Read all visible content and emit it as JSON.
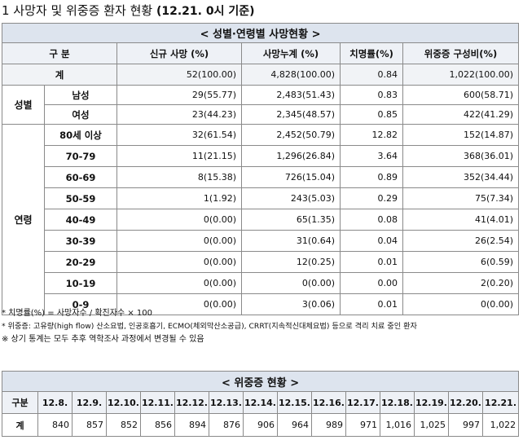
{
  "page": {
    "title": "1  사망자 및 위중증 환자 현황",
    "date_tag": "(12.21. 0시 기준)"
  },
  "deaths_table": {
    "title": "< 성별·연령별 사망현황 >",
    "headers": [
      "구 분",
      "신규 사망  (%)",
      "사망누계   (%)",
      "치명률(%)",
      "위중증   구성비(%)"
    ],
    "total": {
      "label": "계",
      "new": "52(100.00)",
      "cum": "4,828(100.00)",
      "fatality": "0.84",
      "severe": "1,022(100.00)"
    },
    "sex_group": "성별",
    "sex_rows": [
      {
        "label": "남성",
        "new": "29(55.77)",
        "cum": "2,483(51.43)",
        "fatality": "0.83",
        "severe": "600(58.71)"
      },
      {
        "label": "여성",
        "new": "23(44.23)",
        "cum": "2,345(48.57)",
        "fatality": "0.85",
        "severe": "422(41.29)"
      }
    ],
    "age_group": "연령",
    "age_rows": [
      {
        "label": "80세 이상",
        "new": "32(61.54)",
        "cum": "2,452(50.79)",
        "fatality": "12.82",
        "severe": "152(14.87)"
      },
      {
        "label": "70-79",
        "new": "11(21.15)",
        "cum": "1,296(26.84)",
        "fatality": "3.64",
        "severe": "368(36.01)"
      },
      {
        "label": "60-69",
        "new": "8(15.38)",
        "cum": "726(15.04)",
        "fatality": "0.89",
        "severe": "352(34.44)"
      },
      {
        "label": "50-59",
        "new": "1(1.92)",
        "cum": "243(5.03)",
        "fatality": "0.29",
        "severe": "75(7.34)"
      },
      {
        "label": "40-49",
        "new": "0(0.00)",
        "cum": "65(1.35)",
        "fatality": "0.08",
        "severe": "41(4.01)"
      },
      {
        "label": "30-39",
        "new": "0(0.00)",
        "cum": "31(0.64)",
        "fatality": "0.04",
        "severe": "26(2.54)"
      },
      {
        "label": "20-29",
        "new": "0(0.00)",
        "cum": "12(0.25)",
        "fatality": "0.01",
        "severe": "6(0.59)"
      },
      {
        "label": "10-19",
        "new": "0(0.00)",
        "cum": "0(0.00)",
        "fatality": "0.00",
        "severe": "2(0.20)"
      },
      {
        "label": "0-9",
        "new": "0(0.00)",
        "cum": "3(0.06)",
        "fatality": "0.01",
        "severe": "0(0.00)"
      }
    ]
  },
  "notes": [
    "* 치명률(%) = 사망자수 / 확진자수 × 100",
    "* 위중증: 고유량(high flow) 산소요법, 인공호흡기, ECMO(체외막산소공급), CRRT(지속적신대체요법) 등으로 격리 치료 중인 환자",
    "※ 상기 통계는 모두 추후 역학조사 과정에서 변경될 수 있음"
  ],
  "severe_table": {
    "title": "< 위중증 현황 >",
    "head_label": "구분",
    "dates": [
      "12.8.",
      "12.9.",
      "12.10.",
      "12.11.",
      "12.12.",
      "12.13.",
      "12.14.",
      "12.15.",
      "12.16.",
      "12.17.",
      "12.18.",
      "12.19.",
      "12.20.",
      "12.21."
    ],
    "row_label": "계",
    "values": [
      "840",
      "857",
      "852",
      "856",
      "894",
      "876",
      "906",
      "964",
      "989",
      "971",
      "1,016",
      "1,025",
      "997",
      "1,022"
    ]
  }
}
